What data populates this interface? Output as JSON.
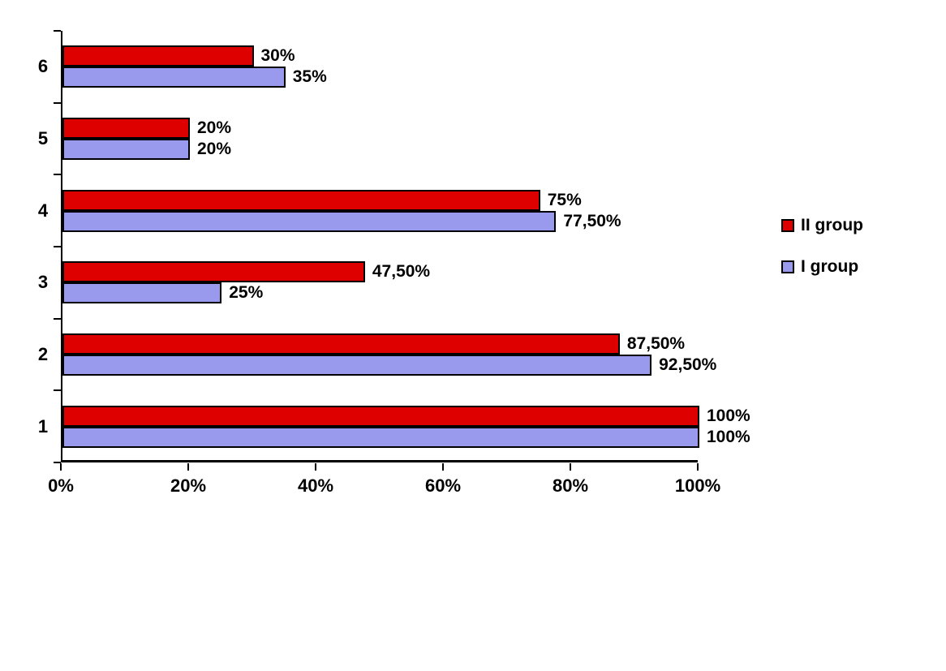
{
  "chart_data": {
    "type": "bar",
    "orientation": "horizontal",
    "title": "",
    "xlabel": "",
    "ylabel": "",
    "categories": [
      "6",
      "5",
      "4",
      "3",
      "2",
      "1"
    ],
    "series": [
      {
        "name": "II group",
        "color": "#DE0000",
        "values": [
          30,
          20,
          75,
          47.5,
          87.5,
          100
        ],
        "labels": [
          "30%",
          "20%",
          "75%",
          "47,50%",
          "87,50%",
          "100%"
        ]
      },
      {
        "name": "I group",
        "color": "#9999EE",
        "values": [
          35,
          20,
          77.5,
          25,
          92.5,
          100
        ],
        "labels": [
          "35%",
          "20%",
          "77,50%",
          "25%",
          "92,50%",
          "100%"
        ]
      }
    ],
    "x_ticks": [
      "0%",
      "20%",
      "40%",
      "60%",
      "80%",
      "100%"
    ],
    "xlim": [
      0,
      100
    ],
    "grid": false,
    "legend_position": "right",
    "bar_border_color": "#000000",
    "background_color": "#FFFFFF"
  }
}
